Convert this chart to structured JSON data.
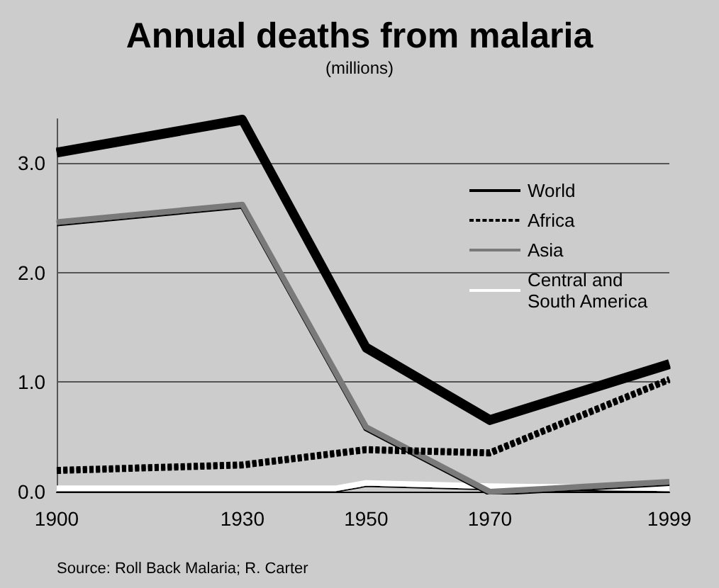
{
  "chart_data": {
    "type": "line",
    "title": "Annual deaths from malaria",
    "subtitle": "(millions)",
    "annotations": [
      "Source: Roll Back Malaria; R. Carter"
    ],
    "x": [
      1900,
      1930,
      1950,
      1970,
      1999
    ],
    "series": [
      {
        "name": "World",
        "color": "#000000",
        "values": [
          3.1,
          3.4,
          1.32,
          0.66,
          1.17
        ],
        "line_style": "solid"
      },
      {
        "name": "Africa",
        "color": "#000000",
        "values": [
          0.2,
          0.25,
          0.39,
          0.36,
          1.03
        ],
        "line_style": "dashed"
      },
      {
        "name": "Asia",
        "color": "#7a7a7a",
        "values": [
          2.46,
          2.62,
          0.59,
          0.0,
          0.09
        ],
        "line_style": "solid"
      },
      {
        "name": "Central and South America",
        "color": "#ffffff",
        "x": [
          1900,
          1945,
          1950,
          1970,
          1999
        ],
        "values": [
          0.03,
          0.03,
          0.08,
          0.05,
          0.03
        ],
        "line_style": "solid"
      }
    ],
    "xlim": [
      1900,
      1999
    ],
    "xticks": [
      1900,
      1930,
      1950,
      1970,
      1999
    ],
    "ylim": [
      0,
      3.4
    ],
    "yticks": [
      {
        "value": 0,
        "label": "0.0"
      },
      {
        "value": 1,
        "label": "1.0"
      },
      {
        "value": 2,
        "label": "2.0"
      },
      {
        "value": 3,
        "label": "3.0"
      }
    ],
    "grid": "y",
    "legend": "top right",
    "marker": "none"
  }
}
